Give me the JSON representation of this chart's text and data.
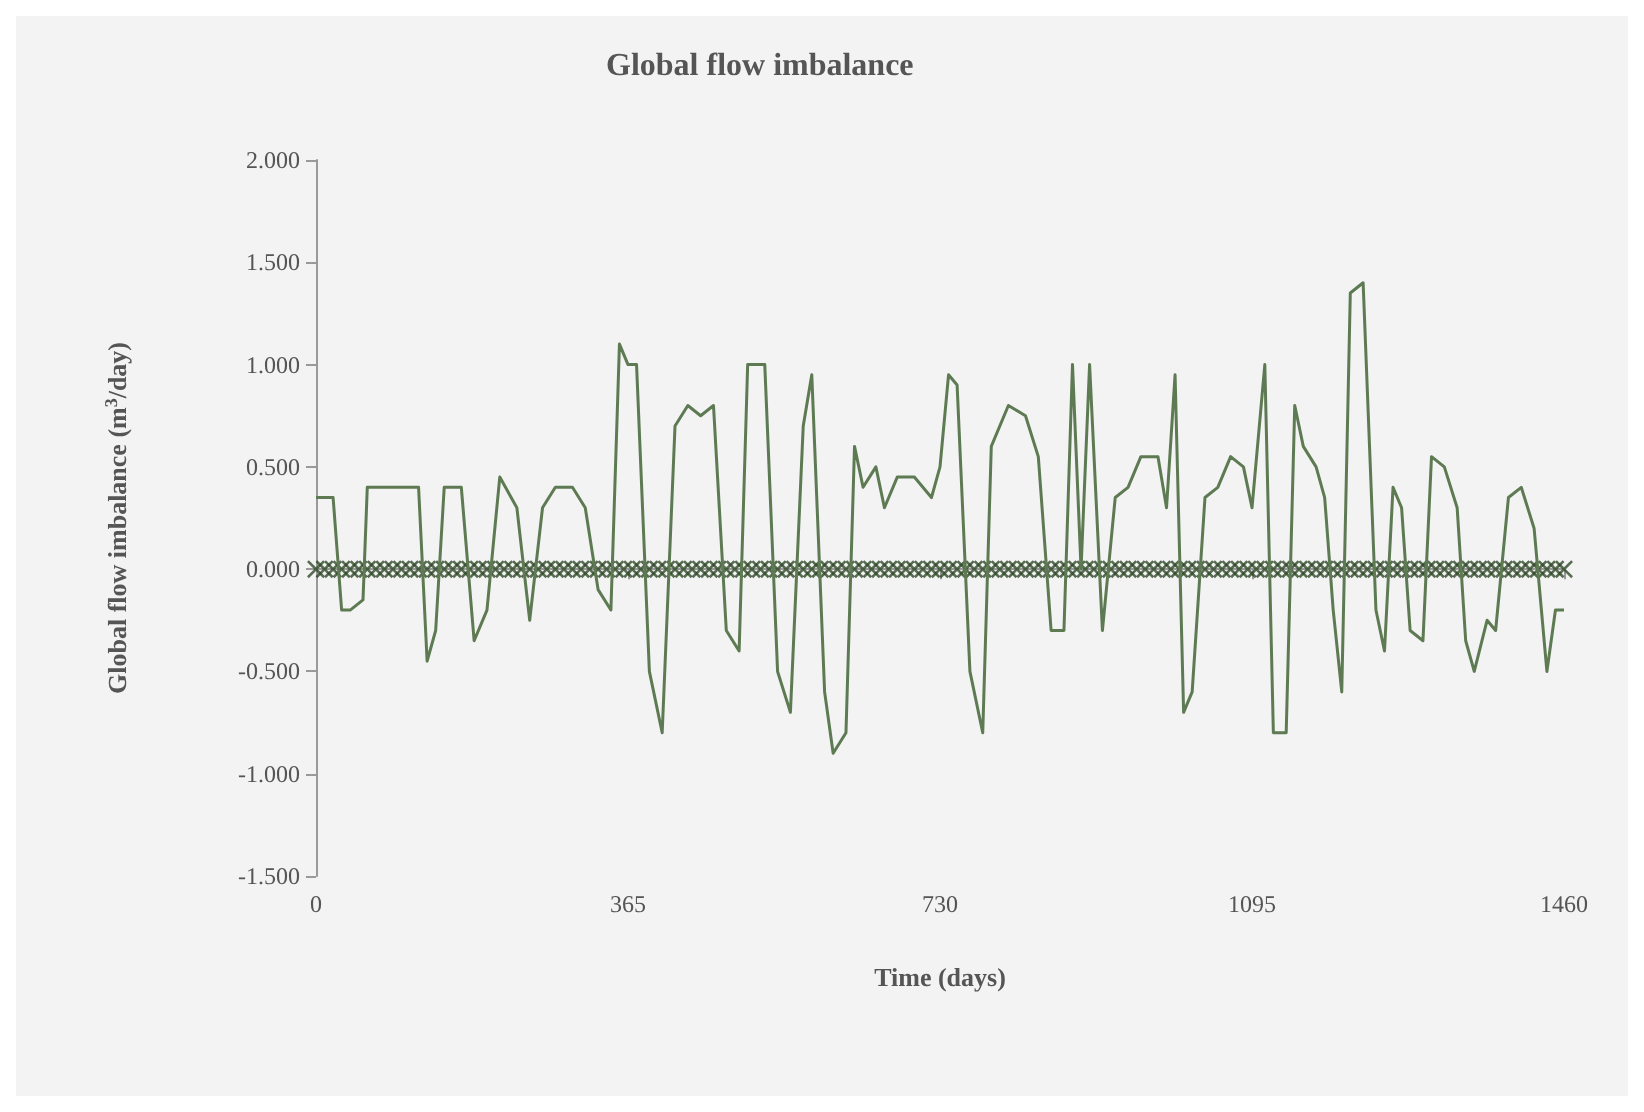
{
  "chart_data": {
    "type": "line",
    "title": "Global flow imbalance",
    "xlabel": "Time (days)",
    "ylabel": "Global flow imbalance (m$^{3}$/day)",
    "xlim": [
      0,
      1460
    ],
    "xticks": [
      0,
      365,
      730,
      1095,
      1460
    ],
    "ylim": [
      -1.5,
      2
    ],
    "yticks": [
      {
        "value": -1.5,
        "label": "-1.500"
      },
      {
        "value": -1,
        "label": "-1.000"
      },
      {
        "value": -0.5,
        "label": "-0.500"
      },
      {
        "value": 0,
        "label": "0.000"
      },
      {
        "value": 0.5,
        "label": "0.500"
      },
      {
        "value": 1,
        "label": "1.000"
      },
      {
        "value": 1.5,
        "label": "1.500"
      },
      {
        "value": 2,
        "label": "2.000"
      }
    ],
    "series": [
      {
        "marker": "none",
        "color": "#5d7a52",
        "x": [
          0,
          20,
          30,
          40,
          55,
          60,
          70,
          120,
          130,
          140,
          150,
          170,
          185,
          200,
          215,
          235,
          250,
          265,
          280,
          300,
          315,
          330,
          345,
          355,
          365,
          375,
          390,
          405,
          420,
          435,
          450,
          465,
          480,
          495,
          505,
          525,
          540,
          555,
          570,
          580,
          595,
          605,
          620,
          630,
          640,
          655,
          665,
          680,
          700,
          720,
          730,
          740,
          750,
          765,
          780,
          790,
          810,
          830,
          845,
          860,
          875,
          885,
          895,
          905,
          920,
          935,
          950,
          965,
          985,
          995,
          1005,
          1015,
          1025,
          1040,
          1055,
          1070,
          1085,
          1095,
          1110,
          1120,
          1135,
          1145,
          1155,
          1170,
          1180,
          1190,
          1200,
          1210,
          1225,
          1240,
          1250,
          1260,
          1270,
          1280,
          1295,
          1305,
          1320,
          1335,
          1345,
          1355,
          1370,
          1380,
          1395,
          1410,
          1425,
          1440,
          1450,
          1460
        ],
        "values": [
          0.35,
          0.35,
          -0.2,
          -0.2,
          -0.15,
          0.4,
          0.4,
          0.4,
          -0.45,
          -0.3,
          0.4,
          0.4,
          -0.35,
          -0.2,
          0.45,
          0.3,
          -0.25,
          0.3,
          0.4,
          0.4,
          0.3,
          -0.1,
          -0.2,
          1.1,
          1.0,
          1.0,
          -0.5,
          -0.8,
          0.7,
          0.8,
          0.75,
          0.8,
          -0.3,
          -0.4,
          1.0,
          1.0,
          -0.5,
          -0.7,
          0.7,
          0.95,
          -0.6,
          -0.9,
          -0.8,
          0.6,
          0.4,
          0.5,
          0.3,
          0.45,
          0.45,
          0.35,
          0.5,
          0.95,
          0.9,
          -0.5,
          -0.8,
          0.6,
          0.8,
          0.75,
          0.55,
          -0.3,
          -0.3,
          1.0,
          0.0,
          1.0,
          -0.3,
          0.35,
          0.4,
          0.55,
          0.55,
          0.3,
          0.95,
          -0.7,
          -0.6,
          0.35,
          0.4,
          0.55,
          0.5,
          0.3,
          1.0,
          -0.8,
          -0.8,
          0.8,
          0.6,
          0.5,
          0.35,
          -0.2,
          -0.6,
          1.35,
          1.4,
          -0.2,
          -0.4,
          0.4,
          0.3,
          -0.3,
          -0.35,
          0.55,
          0.5,
          0.3,
          -0.35,
          -0.5,
          -0.25,
          -0.3,
          0.35,
          0.4,
          0.2,
          -0.5,
          -0.2,
          -0.2
        ]
      },
      {
        "type": "scatter",
        "marker": "cross",
        "color": "#2f4a28",
        "x": [
          0,
          10,
          20,
          30,
          40,
          50,
          60,
          70,
          80,
          90,
          100,
          110,
          120,
          130,
          140,
          150,
          160,
          170,
          180,
          190,
          200,
          210,
          220,
          230,
          240,
          250,
          260,
          270,
          280,
          290,
          300,
          310,
          320,
          330,
          340,
          350,
          360,
          370,
          380,
          390,
          400,
          410,
          420,
          430,
          440,
          450,
          460,
          470,
          480,
          490,
          500,
          510,
          520,
          530,
          540,
          550,
          560,
          570,
          580,
          590,
          600,
          610,
          620,
          630,
          640,
          650,
          660,
          670,
          680,
          690,
          700,
          710,
          720,
          730,
          740,
          750,
          760,
          770,
          780,
          790,
          800,
          810,
          820,
          830,
          840,
          850,
          860,
          870,
          880,
          890,
          900,
          910,
          920,
          930,
          940,
          950,
          960,
          970,
          980,
          990,
          1000,
          1010,
          1020,
          1030,
          1040,
          1050,
          1060,
          1070,
          1080,
          1090,
          1100,
          1110,
          1120,
          1130,
          1140,
          1150,
          1160,
          1170,
          1180,
          1190,
          1200,
          1210,
          1220,
          1230,
          1240,
          1250,
          1260,
          1270,
          1280,
          1290,
          1300,
          1310,
          1320,
          1330,
          1340,
          1350,
          1360,
          1370,
          1380,
          1390,
          1400,
          1410,
          1420,
          1430,
          1440,
          1450,
          1460
        ],
        "values": [
          0,
          0,
          0,
          0,
          0,
          0,
          0,
          0,
          0,
          0,
          0,
          0,
          0,
          0,
          0,
          0,
          0,
          0,
          0,
          0,
          0,
          0,
          0,
          0,
          0,
          0,
          0,
          0,
          0,
          0,
          0,
          0,
          0,
          0,
          0,
          0,
          0,
          0,
          0,
          0,
          0,
          0,
          0,
          0,
          0,
          0,
          0,
          0,
          0,
          0,
          0,
          0,
          0,
          0,
          0,
          0,
          0,
          0,
          0,
          0,
          0,
          0,
          0,
          0,
          0,
          0,
          0,
          0,
          0,
          0,
          0,
          0,
          0,
          0,
          0,
          0,
          0,
          0,
          0,
          0,
          0,
          0,
          0,
          0,
          0,
          0,
          0,
          0,
          0,
          0,
          0,
          0,
          0,
          0,
          0,
          0,
          0,
          0,
          0,
          0,
          0,
          0,
          0,
          0,
          0,
          0,
          0,
          0,
          0,
          0,
          0,
          0,
          0,
          0,
          0,
          0,
          0,
          0,
          0,
          0,
          0,
          0,
          0,
          0,
          0,
          0,
          0,
          0,
          0,
          0,
          0,
          0,
          0,
          0,
          0,
          0,
          0,
          0,
          0,
          0,
          0,
          0,
          0,
          0,
          0,
          0,
          0
        ]
      }
    ]
  }
}
